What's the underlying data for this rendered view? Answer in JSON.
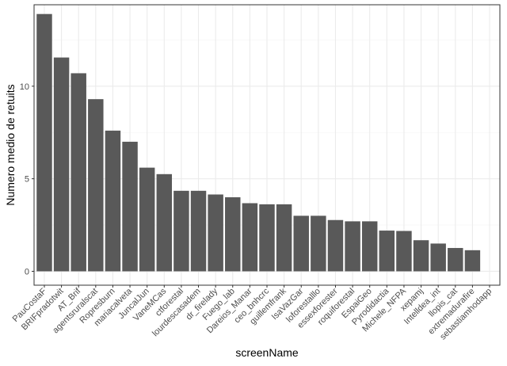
{
  "colors": {
    "bar": "#595959",
    "grid_major": "#ebebeb",
    "grid_minor": "#f5f5f5",
    "panel_border": "#333333",
    "tick_text": "#4d4d4d",
    "axis_title": "#000000"
  },
  "chart_data": {
    "type": "bar",
    "xlabel": "screenName",
    "ylabel": "Numero medio de retuits",
    "ylim": [
      -0.75,
      14.4
    ],
    "yticks": [
      0,
      5,
      10
    ],
    "grid": true,
    "categories": [
      "PauCostaF",
      "BRIFpradotwit",
      "AT_Brif",
      "agentsruralscat",
      "Ropresburn",
      "mariacalveta",
      "JuncalJun",
      "VaneMCas",
      "ctforestal",
      "lourdescasadem",
      "dr_firelady",
      "Fuego_lab",
      "Dareios_Manar",
      "ceo_bnhcrc",
      "guillemfrank",
      "IsaVazGar",
      "loforestalllo",
      "essexforester",
      "roquiforestal",
      "EspaiGeo",
      "Pyrodidactia",
      "Michele_NFPA",
      "xepamj",
      "Intelldea_int",
      "llopis_cat",
      "extremadurafire",
      "sebastiamhodapp"
    ],
    "values": [
      13.9,
      11.55,
      10.7,
      9.3,
      7.6,
      7.0,
      5.6,
      5.25,
      4.35,
      4.35,
      4.15,
      4.0,
      3.68,
      3.62,
      3.62,
      3.0,
      3.0,
      2.77,
      2.7,
      2.7,
      2.2,
      2.18,
      1.68,
      1.5,
      1.26,
      1.14,
      0
    ]
  }
}
